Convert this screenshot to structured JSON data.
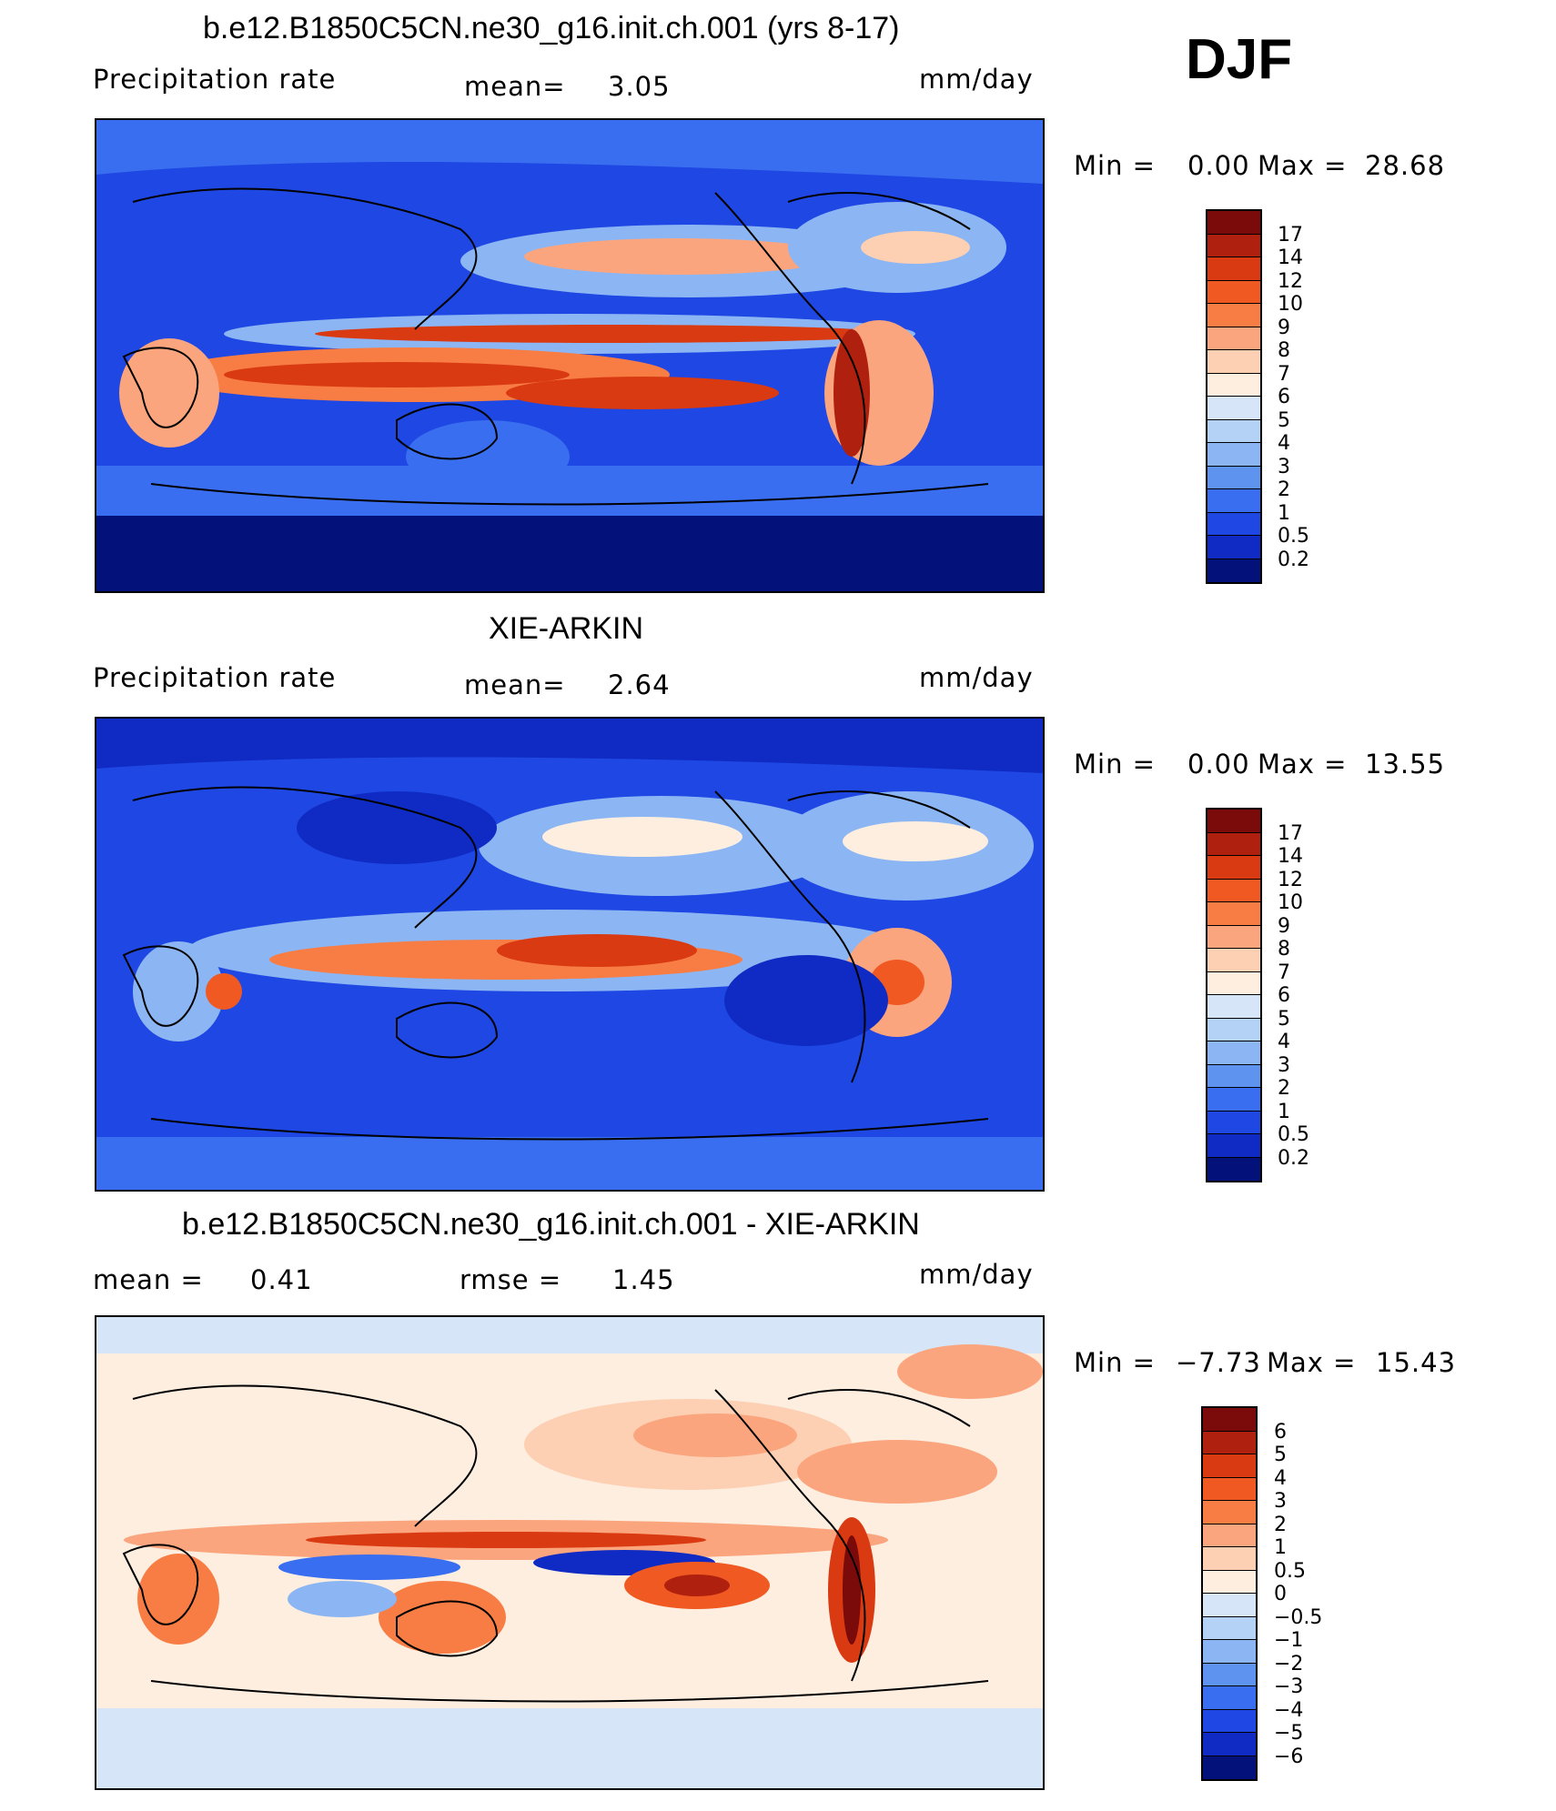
{
  "season": "DJF",
  "panels": [
    {
      "title": "b.e12.B1850C5CN.ne30_g16.init.ch.001 (yrs 8-17)",
      "left_label": "Precipitation  rate",
      "middle_label": "mean=",
      "middle_value": "3.05",
      "units": "mm/day",
      "min_label": "Min  =",
      "min_value": "0.00",
      "max_label": "Max  =",
      "max_value": "28.68",
      "levels": [
        "17",
        "14",
        "12",
        "10",
        "9",
        "8",
        "7",
        "6",
        "5",
        "4",
        "3",
        "2",
        "1",
        "0.5",
        "0.2"
      ]
    },
    {
      "title": "XIE-ARKIN",
      "left_label": "Precipitation  rate",
      "middle_label": "mean=",
      "middle_value": "2.64",
      "units": "mm/day",
      "min_label": "Min  =",
      "min_value": "0.00",
      "max_label": "Max  =",
      "max_value": "13.55",
      "levels": [
        "17",
        "14",
        "12",
        "10",
        "9",
        "8",
        "7",
        "6",
        "5",
        "4",
        "3",
        "2",
        "1",
        "0.5",
        "0.2"
      ]
    },
    {
      "title": "b.e12.B1850C5CN.ne30_g16.init.ch.001 - XIE-ARKIN",
      "left_label": "mean  =",
      "left_value": "0.41",
      "middle_label": "rmse  =",
      "middle_value": "1.45",
      "units": "mm/day",
      "min_label": "Min  =",
      "min_value": "−7.73",
      "max_label": "Max  =",
      "max_value": "15.43",
      "levels": [
        "6",
        "5",
        "4",
        "3",
        "2",
        "1",
        "0.5",
        "0",
        "−0.5",
        "−1",
        "−2",
        "−3",
        "−4",
        "−5",
        "−6"
      ]
    }
  ],
  "colors": {
    "precip_scale": [
      "#7b0a0a",
      "#b0200f",
      "#d93a12",
      "#f05a22",
      "#f77d45",
      "#fba57e",
      "#fdcfb3",
      "#fdeee0",
      "#d6e6f8",
      "#b4d2f6",
      "#8cb6f3",
      "#5f93f0",
      "#3a6ef0",
      "#1f47e3",
      "#0f2bc4",
      "#03127a"
    ],
    "diff_scale": [
      "#7b0a0a",
      "#b0200f",
      "#d93a12",
      "#f05a22",
      "#f77d45",
      "#fba57e",
      "#fdcfb3",
      "#fdeee0",
      "#d6e6f8",
      "#b4d2f6",
      "#8cb6f3",
      "#5f93f0",
      "#3a6ef0",
      "#1f47e3",
      "#0f2bc4",
      "#03127a"
    ]
  }
}
